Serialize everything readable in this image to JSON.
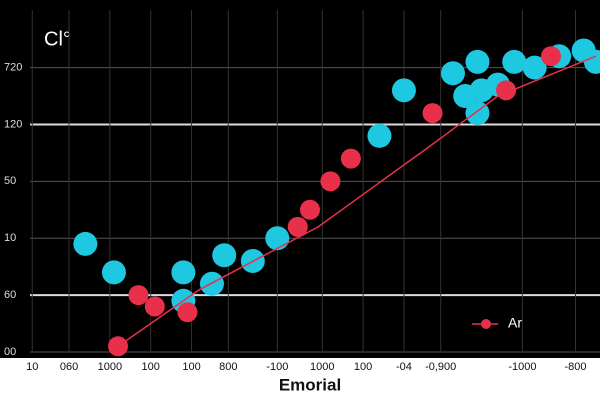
{
  "chart_data": {
    "type": "scatter",
    "title": "Cl°",
    "x_label": "Emorial",
    "xlim": [
      0,
      14.2
    ],
    "ylim": [
      0,
      6
    ],
    "grid": true,
    "legend": "lower right",
    "xticks": [
      {
        "value": 0.3,
        "label": "10"
      },
      {
        "value": 1.2,
        "label": "060"
      },
      {
        "value": 2.2,
        "label": "1000"
      },
      {
        "value": 3.2,
        "label": "100"
      },
      {
        "value": 4.2,
        "label": "100"
      },
      {
        "value": 5.1,
        "label": "800"
      },
      {
        "value": 6.3,
        "label": "-100"
      },
      {
        "value": 7.4,
        "label": "1000"
      },
      {
        "value": 8.4,
        "label": "100"
      },
      {
        "value": 9.4,
        "label": "-04"
      },
      {
        "value": 10.3,
        "label": "-0,900"
      },
      {
        "value": 12.3,
        "label": "-1000"
      },
      {
        "value": 13.6,
        "label": "-800"
      }
    ],
    "yticks": [
      {
        "value": 0,
        "label": "00"
      },
      {
        "value": 1,
        "label": "60"
      },
      {
        "value": 2,
        "label": "10"
      },
      {
        "value": 3,
        "label": "50"
      },
      {
        "value": 4,
        "label": "120"
      },
      {
        "value": 5,
        "label": "720"
      }
    ],
    "series": [
      {
        "color": "#1ec8e0",
        "x": [
          1.6,
          2.3,
          4.0,
          4.0,
          4.7,
          5.0,
          5.7,
          6.3,
          8.8,
          9.4,
          10.6,
          10.9,
          11.2,
          11.3,
          11.2,
          11.7,
          12.1,
          12.6,
          13.2,
          13.8,
          14.1
        ],
        "values": [
          1.9,
          1.4,
          1.4,
          0.9,
          1.2,
          1.7,
          1.6,
          2.0,
          3.8,
          4.6,
          4.9,
          4.5,
          5.1,
          4.6,
          4.2,
          4.7,
          5.1,
          5.0,
          5.2,
          5.3,
          5.1
        ]
      },
      {
        "name": "Ar",
        "color": "#e8304a",
        "x": [
          2.4,
          2.9,
          3.3,
          4.1,
          6.8,
          7.1,
          7.6,
          8.1,
          10.1,
          11.9,
          13.0
        ],
        "values": [
          0.1,
          1.0,
          0.8,
          0.7,
          2.2,
          2.5,
          3.0,
          3.4,
          4.2,
          4.6,
          5.2
        ],
        "line": {
          "x": [
            2.4,
            4.4,
            7.3,
            10.0,
            11.7,
            14.1
          ],
          "values": [
            0.1,
            1.1,
            2.2,
            3.6,
            4.5,
            5.2
          ]
        }
      }
    ]
  }
}
